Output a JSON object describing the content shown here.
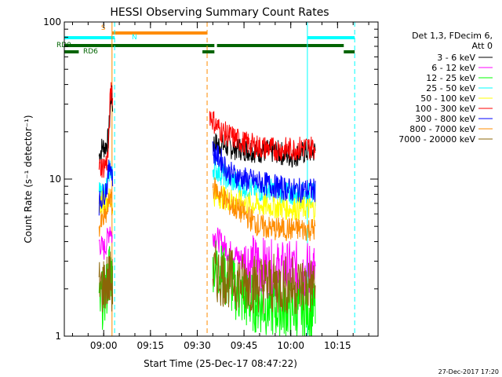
{
  "chart_data": {
    "type": "line",
    "title": "HESSI Observing Summary Count Rates",
    "xlabel": "Start Time (25-Dec-17 08:47:22)",
    "ylabel": "Count Rate (s⁻¹ detector⁻¹)",
    "x_start": "08:47",
    "x_end": "10:28",
    "xticks": [
      "09:00",
      "09:15",
      "09:30",
      "09:45",
      "10:00",
      "10:15"
    ],
    "yscale": "log",
    "ylim": [
      1,
      100
    ],
    "yticks": [
      "1",
      "10",
      "100"
    ],
    "timestamp": "27-Dec-2017 17:20",
    "legend_header": [
      "Det 1,3, FDecim 6,",
      "Att 0"
    ],
    "legend_position": "right",
    "series": [
      {
        "name": "3 - 6 keV",
        "color": "#000000",
        "segments": [
          {
            "t": [
              [
                "08:58:30",
                14
              ],
              [
                "08:59:30",
                16
              ],
              [
                "09:00:30",
                16
              ],
              [
                "09:01",
                17
              ],
              [
                "09:01:30",
                18
              ],
              [
                "09:02",
                26
              ],
              [
                "09:02:30",
                35
              ],
              [
                "09:03",
                28
              ]
            ]
          },
          {
            "t": [
              [
                "09:35",
                17
              ],
              [
                "09:37",
                16.5
              ],
              [
                "09:40",
                16
              ],
              [
                "09:45",
                15.5
              ],
              [
                "09:50",
                15
              ],
              [
                "09:55",
                15
              ],
              [
                "10:00",
                14
              ],
              [
                "10:03",
                14.5
              ],
              [
                "10:06",
                15
              ],
              [
                "10:08",
                15
              ]
            ]
          }
        ]
      },
      {
        "name": "6 - 12 keV",
        "color": "#ff00ff",
        "segments": [
          {
            "t": [
              [
                "08:58:30",
                4
              ],
              [
                "09:00",
                3.5
              ],
              [
                "09:01",
                4
              ],
              [
                "09:02",
                5
              ],
              [
                "09:03",
                4
              ]
            ]
          },
          {
            "t": [
              [
                "09:35",
                4.5
              ],
              [
                "09:40",
                3.5
              ],
              [
                "09:45",
                3
              ],
              [
                "09:50",
                2.8
              ],
              [
                "09:55",
                2.6
              ],
              [
                "10:00",
                2.6
              ],
              [
                "10:05",
                2.6
              ],
              [
                "10:08",
                2.6
              ]
            ]
          }
        ]
      },
      {
        "name": "12 - 25 keV",
        "color": "#00ff00",
        "segments": [
          {
            "t": [
              [
                "08:58:30",
                1.5
              ],
              [
                "09:00",
                1.8
              ],
              [
                "09:01",
                2
              ],
              [
                "09:02",
                3
              ],
              [
                "09:03",
                2
              ]
            ]
          },
          {
            "t": [
              [
                "09:35",
                3
              ],
              [
                "09:40",
                2.2
              ],
              [
                "09:45",
                1.7
              ],
              [
                "09:50",
                1.6
              ],
              [
                "09:55",
                1.5
              ],
              [
                "10:00",
                1.5
              ],
              [
                "10:05",
                1.5
              ],
              [
                "10:08",
                1.5
              ]
            ]
          }
        ]
      },
      {
        "name": "25 - 50 keV",
        "color": "#00ffff",
        "segments": [
          {
            "t": [
              [
                "08:58:30",
                8
              ],
              [
                "09:00",
                8
              ],
              [
                "09:01",
                9
              ],
              [
                "09:02",
                12
              ],
              [
                "09:03",
                10
              ]
            ]
          },
          {
            "t": [
              [
                "09:35",
                12
              ],
              [
                "09:40",
                10
              ],
              [
                "09:45",
                9
              ],
              [
                "09:50",
                8.5
              ],
              [
                "09:55",
                8.5
              ],
              [
                "10:00",
                8
              ],
              [
                "10:05",
                8
              ],
              [
                "10:08",
                8
              ]
            ]
          }
        ]
      },
      {
        "name": "50 - 100 keV",
        "color": "#ffff00",
        "segments": [
          {
            "t": [
              [
                "08:58:30",
                7
              ],
              [
                "09:02",
                7.5
              ],
              [
                "09:03",
                7
              ]
            ]
          },
          {
            "t": [
              [
                "09:35",
                8
              ],
              [
                "09:45",
                7
              ],
              [
                "10:00",
                6.5
              ],
              [
                "10:08",
                6.5
              ]
            ]
          }
        ]
      },
      {
        "name": "100 - 300 keV",
        "color": "#ff0000",
        "segments": [
          {
            "t": [
              [
                "08:58:30",
                12
              ],
              [
                "09:00",
                12
              ],
              [
                "09:01",
                13
              ],
              [
                "09:01:30",
                15
              ],
              [
                "09:02",
                30
              ],
              [
                "09:02:30",
                40
              ],
              [
                "09:03",
                30
              ]
            ]
          },
          {
            "t": [
              [
                "09:34",
                26
              ],
              [
                "09:36",
                22
              ],
              [
                "09:38",
                20
              ],
              [
                "09:40",
                19
              ],
              [
                "09:45",
                17
              ],
              [
                "09:50",
                16
              ],
              [
                "09:55",
                15.5
              ],
              [
                "10:00",
                15.5
              ],
              [
                "10:05",
                16
              ],
              [
                "10:08",
                16
              ]
            ]
          }
        ]
      },
      {
        "name": "300 - 800 keV",
        "color": "#0000ff",
        "segments": [
          {
            "t": [
              [
                "08:58:30",
                7
              ],
              [
                "09:00",
                8
              ],
              [
                "09:01",
                9
              ],
              [
                "09:02",
                13
              ],
              [
                "09:03",
                10
              ]
            ]
          },
          {
            "t": [
              [
                "09:35",
                15
              ],
              [
                "09:38",
                13
              ],
              [
                "09:40",
                11
              ],
              [
                "09:45",
                10
              ],
              [
                "09:50",
                9.5
              ],
              [
                "09:55",
                9
              ],
              [
                "10:00",
                8.5
              ],
              [
                "10:05",
                8.5
              ],
              [
                "10:08",
                8.5
              ]
            ]
          }
        ]
      },
      {
        "name": "800 - 7000 keV",
        "color": "#ff8c00",
        "segments": [
          {
            "t": [
              [
                "08:58:30",
                5
              ],
              [
                "09:00",
                5.5
              ],
              [
                "09:01",
                6
              ],
              [
                "09:02",
                8
              ],
              [
                "09:03",
                6
              ]
            ]
          },
          {
            "t": [
              [
                "09:35",
                9
              ],
              [
                "09:40",
                7
              ],
              [
                "09:45",
                6
              ],
              [
                "09:50",
                5
              ],
              [
                "09:55",
                4.8
              ],
              [
                "10:00",
                4.8
              ],
              [
                "10:05",
                4.8
              ],
              [
                "10:08",
                4.8
              ]
            ]
          }
        ]
      },
      {
        "name": "7000 - 20000 keV",
        "color": "#8b6508",
        "segments": [
          {
            "t": [
              [
                "08:58:30",
                2
              ],
              [
                "09:02",
                2.3
              ],
              [
                "09:03",
                2
              ]
            ]
          },
          {
            "t": [
              [
                "09:35",
                2.5
              ],
              [
                "09:45",
                2.2
              ],
              [
                "10:00",
                2.1
              ],
              [
                "10:08",
                2.1
              ]
            ]
          }
        ]
      }
    ],
    "flag_bars": [
      {
        "label": "S",
        "color": "#ff8c00",
        "start": "09:02:40",
        "end": "09:33:10",
        "level": "top"
      },
      {
        "label": "N",
        "color": "#00ffff",
        "start": "08:47:22",
        "end": "09:03:30",
        "level": "second",
        "continue_start": "10:05:20",
        "continue_end": "10:20:30"
      },
      {
        "label": "RD0",
        "color": "#006400",
        "start": "08:47:22",
        "end": "10:17:00",
        "level": "third",
        "gaps": [
          [
            "09:35:30",
            "09:36:20"
          ]
        ]
      },
      {
        "label": "RD6",
        "color": "#006400",
        "start": "08:47:22",
        "end": "10:20:30",
        "level": "fourth",
        "gaps": [
          [
            "08:52:00",
            "09:31:40"
          ],
          [
            "09:35:30",
            "10:17:00"
          ]
        ]
      }
    ],
    "vertical_lines": [
      {
        "time": "09:02:40",
        "color": "#ff8c00",
        "style": "solid"
      },
      {
        "time": "09:03:30",
        "color": "#00ffff",
        "style": "dashed"
      },
      {
        "time": "09:33:10",
        "color": "#ff8c00",
        "style": "dashed"
      },
      {
        "time": "10:05:20",
        "color": "#00ffff",
        "style": "solid"
      },
      {
        "time": "10:20:30",
        "color": "#00ffff",
        "style": "dashed"
      }
    ]
  }
}
